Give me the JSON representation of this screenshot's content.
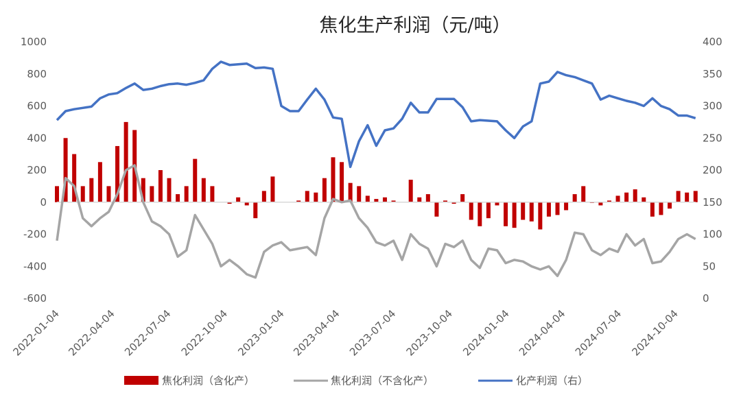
{
  "chart_data": {
    "type": "bar+line",
    "title": "焦化生产利润（元/吨）",
    "y_left": {
      "min": -600,
      "max": 1000,
      "ticks": [
        -600,
        -400,
        -200,
        0,
        200,
        400,
        600,
        800,
        1000
      ]
    },
    "y_right": {
      "min": 0,
      "max": 400,
      "ticks": [
        0,
        50,
        100,
        150,
        200,
        250,
        300,
        350,
        400
      ]
    },
    "x_tick_labels": [
      "2022-01-04",
      "2022-04-04",
      "2022-07-04",
      "2022-10-04",
      "2023-01-04",
      "2023-04-04",
      "2023-07-04",
      "2023-10-04",
      "2024-01-04",
      "2024-04-04",
      "2024-07-04",
      "2024-10-04"
    ],
    "grid": false,
    "legend_position": "bottom",
    "dates": [
      "2022-01-04",
      "2022-01-18",
      "2022-02-01",
      "2022-02-15",
      "2022-03-01",
      "2022-03-15",
      "2022-03-29",
      "2022-04-12",
      "2022-04-26",
      "2022-05-10",
      "2022-05-24",
      "2022-06-07",
      "2022-06-21",
      "2022-07-05",
      "2022-07-19",
      "2022-08-02",
      "2022-08-16",
      "2022-08-30",
      "2022-09-13",
      "2022-09-27",
      "2022-10-11",
      "2022-10-25",
      "2022-11-08",
      "2022-11-22",
      "2022-12-06",
      "2022-12-20",
      "2023-01-03",
      "2023-01-17",
      "2023-01-31",
      "2023-02-14",
      "2023-02-28",
      "2023-03-14",
      "2023-03-28",
      "2023-04-11",
      "2023-04-25",
      "2023-05-09",
      "2023-05-23",
      "2023-06-06",
      "2023-06-20",
      "2023-07-04",
      "2023-07-18",
      "2023-08-01",
      "2023-08-15",
      "2023-08-29",
      "2023-09-12",
      "2023-09-26",
      "2023-10-10",
      "2023-10-24",
      "2023-11-07",
      "2023-11-21",
      "2023-12-05",
      "2023-12-19",
      "2024-01-02",
      "2024-01-16",
      "2024-01-30",
      "2024-02-13",
      "2024-02-27",
      "2024-03-12",
      "2024-03-26",
      "2024-04-09",
      "2024-04-23",
      "2024-05-07",
      "2024-05-21",
      "2024-06-04",
      "2024-06-18",
      "2024-07-02",
      "2024-07-16",
      "2024-07-30",
      "2024-08-13",
      "2024-08-27",
      "2024-09-10",
      "2024-09-24",
      "2024-10-08",
      "2024-10-22",
      "2024-11-05"
    ],
    "series": [
      {
        "name": "焦化利润（含化产）",
        "type": "bar",
        "axis": "left",
        "color": "#c00000",
        "values": [
          100,
          400,
          300,
          100,
          150,
          250,
          100,
          350,
          500,
          450,
          150,
          100,
          200,
          150,
          50,
          100,
          270,
          150,
          100,
          0,
          -10,
          30,
          -20,
          -100,
          70,
          160,
          0,
          0,
          10,
          70,
          60,
          150,
          280,
          250,
          120,
          100,
          40,
          20,
          30,
          10,
          0,
          140,
          30,
          50,
          -90,
          10,
          -10,
          50,
          -110,
          -150,
          -100,
          -20,
          -150,
          -160,
          -110,
          -120,
          -170,
          -90,
          -80,
          -50,
          50,
          100,
          -5,
          -20,
          10,
          40,
          60,
          80,
          30,
          -90,
          -80,
          -40,
          70,
          60,
          70
        ]
      },
      {
        "name": "焦化利润（不含化产）",
        "type": "line",
        "axis": "left",
        "color": "#a5a5a5",
        "values": [
          -240,
          150,
          100,
          -100,
          -150,
          -100,
          -60,
          50,
          200,
          230,
          0,
          -120,
          -150,
          -200,
          -340,
          -300,
          -80,
          -170,
          -260,
          -400,
          -360,
          -400,
          -450,
          -470,
          -310,
          -270,
          -250,
          -300,
          -290,
          -280,
          -330,
          -100,
          20,
          0,
          10,
          -100,
          -160,
          -250,
          -270,
          -240,
          -360,
          -200,
          -260,
          -290,
          -400,
          -260,
          -280,
          -240,
          -360,
          -410,
          -290,
          -300,
          -380,
          -360,
          -370,
          -400,
          -420,
          -400,
          -460,
          -360,
          -190,
          -200,
          -300,
          -330,
          -290,
          -310,
          -200,
          -270,
          -230,
          -380,
          -370,
          -310,
          -230,
          -200,
          -230
        ]
      },
      {
        "name": "化产利润（右）",
        "type": "line",
        "axis": "right",
        "color": "#4472c4",
        "values": [
          278,
          292,
          295,
          297,
          299,
          312,
          318,
          320,
          328,
          335,
          325,
          327,
          331,
          334,
          335,
          333,
          336,
          340,
          358,
          369,
          364,
          365,
          366,
          359,
          360,
          358,
          300,
          292,
          292,
          310,
          327,
          310,
          282,
          280,
          205,
          245,
          270,
          238,
          262,
          265,
          280,
          305,
          290,
          290,
          311,
          311,
          311,
          298,
          276,
          278,
          277,
          276,
          262,
          250,
          268,
          276,
          335,
          338,
          353,
          348,
          345,
          340,
          335,
          310,
          316,
          312,
          308,
          305,
          300,
          312,
          300,
          295,
          285,
          285,
          281
        ]
      }
    ]
  }
}
